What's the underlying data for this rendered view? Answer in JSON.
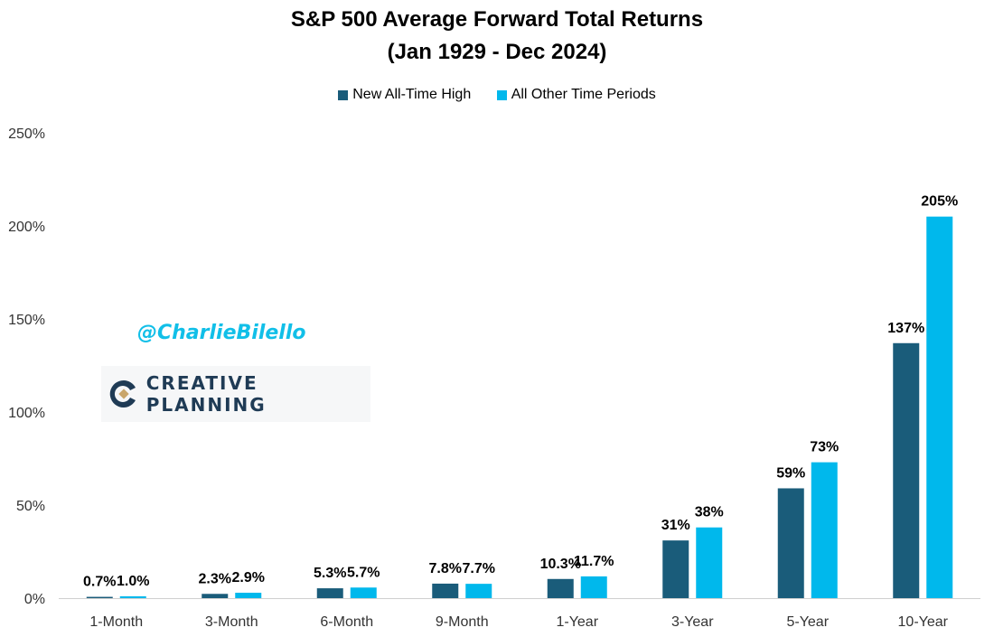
{
  "chart_data": {
    "type": "bar",
    "title": "S&P 500 Average Forward Total Returns",
    "subtitle": "(Jan 1929 - Dec 2024)",
    "categories": [
      "1-Month",
      "3-Month",
      "6-Month",
      "9-Month",
      "1-Year",
      "3-Year",
      "5-Year",
      "10-Year"
    ],
    "series": [
      {
        "name": "New All-Time High",
        "color": "#1a5c7a",
        "values": [
          0.7,
          2.3,
          5.3,
          7.8,
          10.3,
          31,
          59,
          137
        ],
        "labels": [
          "0.7%",
          "2.3%",
          "5.3%",
          "7.8%",
          "10.3%",
          "31%",
          "59%",
          "137%"
        ]
      },
      {
        "name": "All Other Time Periods",
        "color": "#00b8ec",
        "values": [
          1.0,
          2.9,
          5.7,
          7.7,
          11.7,
          38,
          73,
          205
        ],
        "labels": [
          "1.0%",
          "2.9%",
          "5.7%",
          "7.7%",
          "11.7%",
          "38%",
          "73%",
          "205%"
        ]
      }
    ],
    "ylim": [
      0,
      250
    ],
    "yticks": [
      0,
      50,
      100,
      150,
      200,
      250
    ],
    "ytick_labels": [
      "0%",
      "50%",
      "100%",
      "150%",
      "200%",
      "250%"
    ],
    "xlabel": "",
    "ylabel": "",
    "grid": false,
    "legend": "top-center"
  },
  "watermark": "@CharlieBilello",
  "logo_text": "CREATIVE PLANNING"
}
